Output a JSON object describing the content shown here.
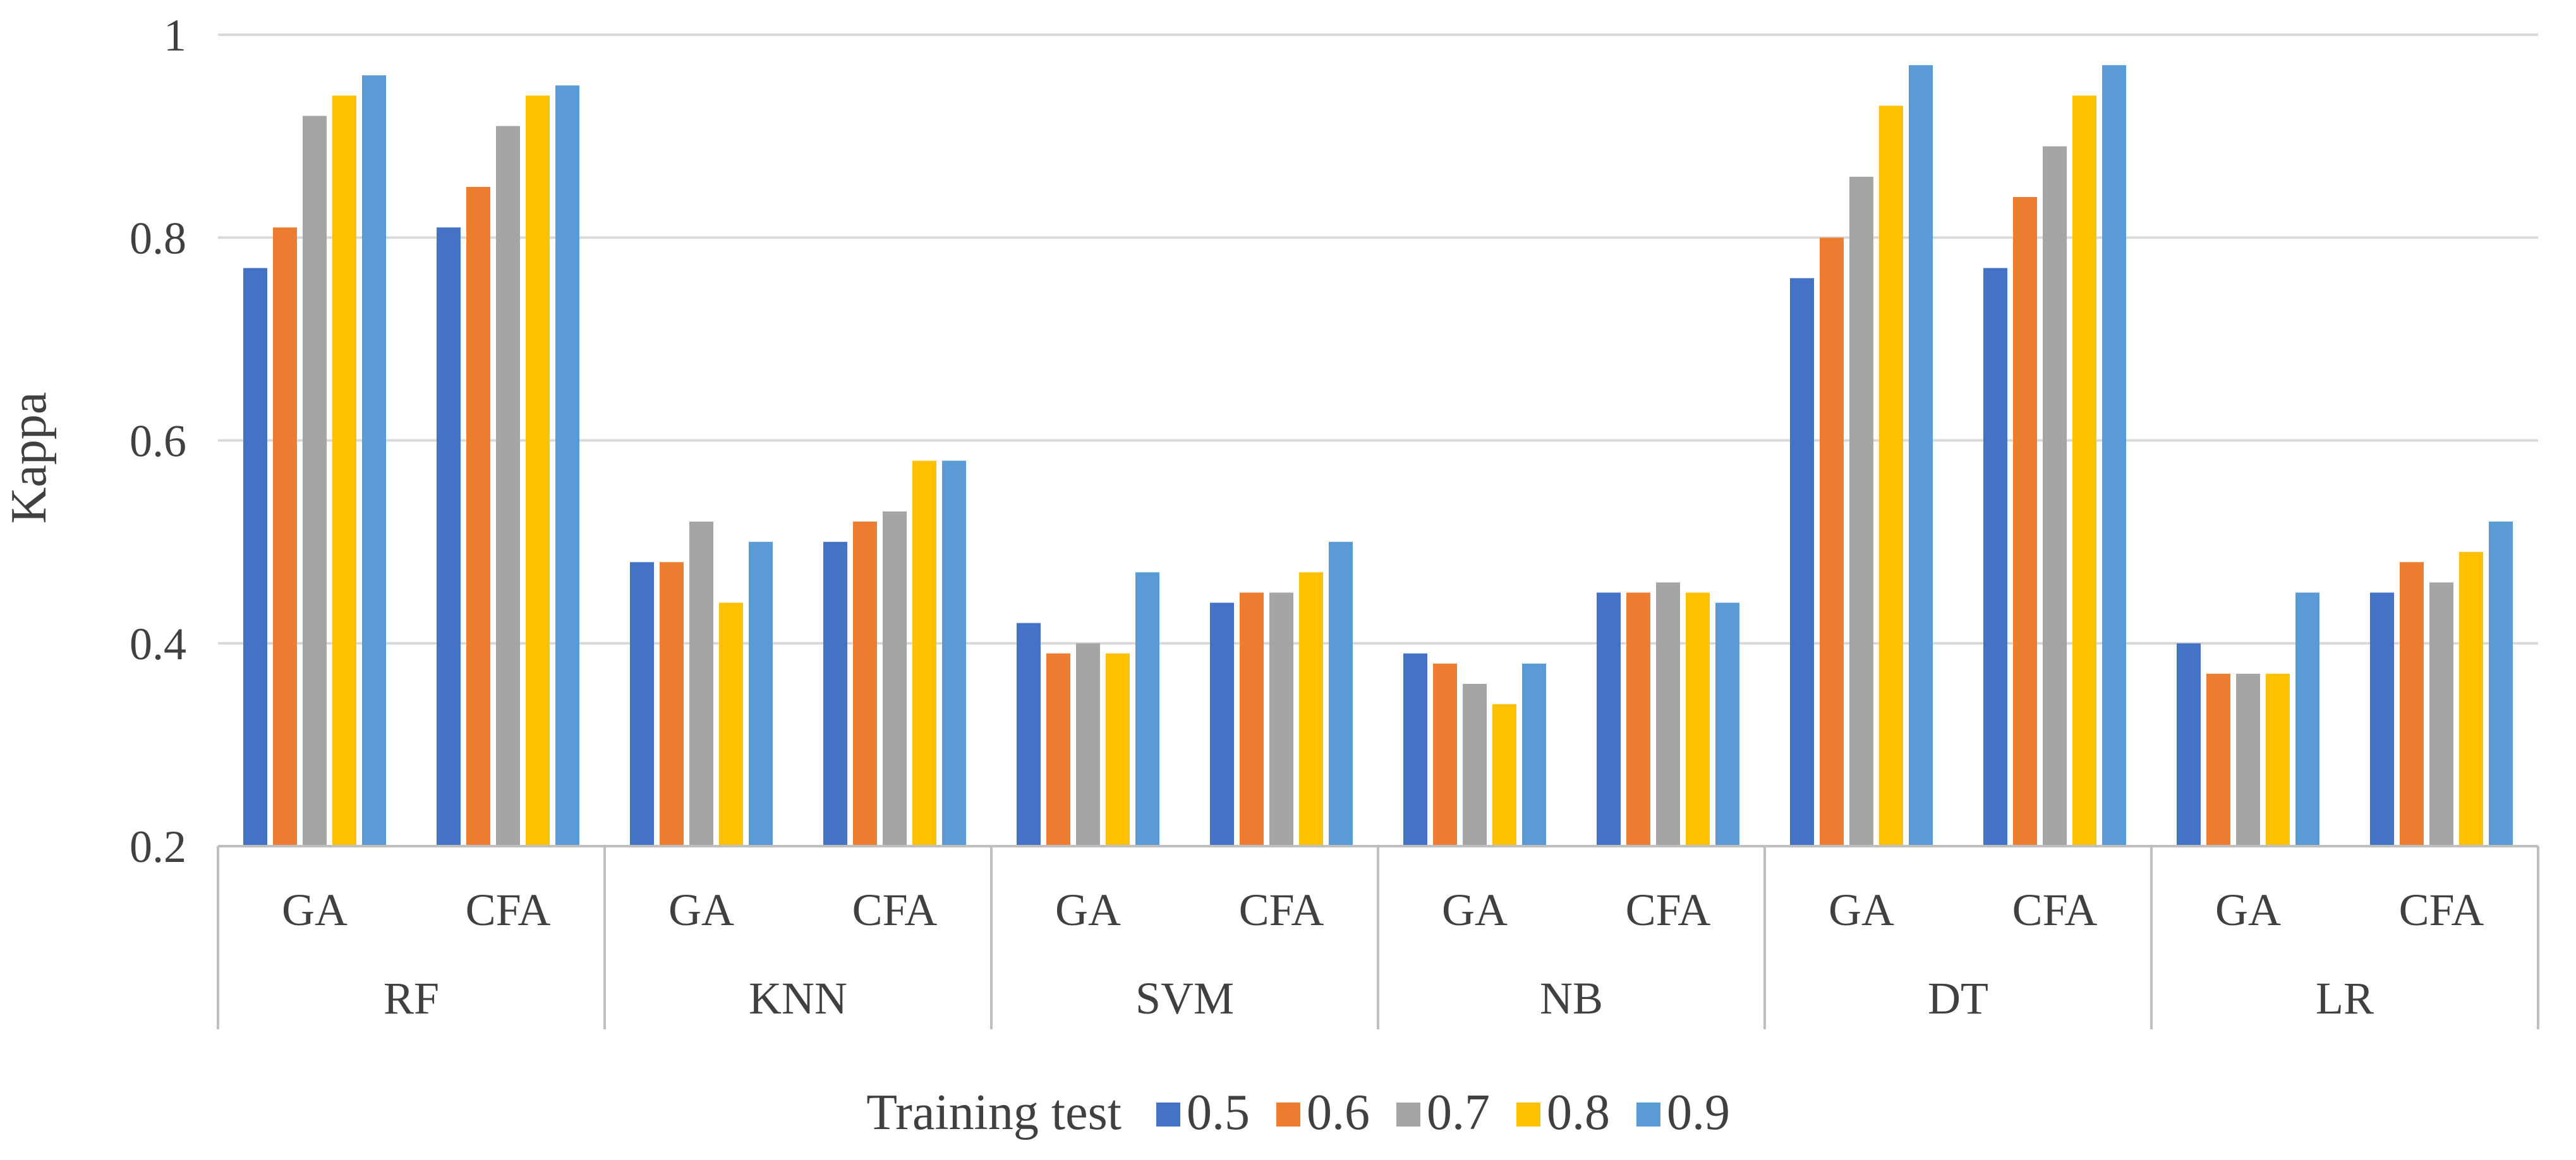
{
  "chart_data": {
    "type": "bar",
    "title": "",
    "ylabel": "Kappa",
    "xlabel": "",
    "ylim": [
      0.2,
      1.0
    ],
    "yticks": [
      "0.2",
      "0.4",
      "0.6",
      "0.8",
      "1"
    ],
    "grid": true,
    "groups": [
      "RF",
      "KNN",
      "SVM",
      "NB",
      "DT",
      "LR"
    ],
    "subcategories": [
      "GA",
      "CFA"
    ],
    "categories": [
      {
        "group": "RF",
        "sub": "GA"
      },
      {
        "group": "RF",
        "sub": "CFA"
      },
      {
        "group": "KNN",
        "sub": "GA"
      },
      {
        "group": "KNN",
        "sub": "CFA"
      },
      {
        "group": "SVM",
        "sub": "GA"
      },
      {
        "group": "SVM",
        "sub": "CFA"
      },
      {
        "group": "NB",
        "sub": "GA"
      },
      {
        "group": "NB",
        "sub": "CFA"
      },
      {
        "group": "DT",
        "sub": "GA"
      },
      {
        "group": "DT",
        "sub": "CFA"
      },
      {
        "group": "LR",
        "sub": "GA"
      },
      {
        "group": "LR",
        "sub": "CFA"
      }
    ],
    "legend_title": "Training test",
    "legend_position": "bottom",
    "series": [
      {
        "name": "0.5",
        "color": "#4472C4",
        "values": [
          0.77,
          0.81,
          0.48,
          0.5,
          0.42,
          0.44,
          0.39,
          0.45,
          0.76,
          0.77,
          0.4,
          0.45
        ]
      },
      {
        "name": "0.6",
        "color": "#ED7D31",
        "values": [
          0.81,
          0.85,
          0.48,
          0.52,
          0.39,
          0.45,
          0.38,
          0.45,
          0.8,
          0.84,
          0.37,
          0.48
        ]
      },
      {
        "name": "0.7",
        "color": "#A5A5A5",
        "values": [
          0.92,
          0.91,
          0.52,
          0.53,
          0.4,
          0.45,
          0.36,
          0.46,
          0.86,
          0.89,
          0.37,
          0.46
        ]
      },
      {
        "name": "0.8",
        "color": "#FFC000",
        "values": [
          0.94,
          0.94,
          0.44,
          0.58,
          0.39,
          0.47,
          0.34,
          0.45,
          0.93,
          0.94,
          0.37,
          0.49
        ]
      },
      {
        "name": "0.9",
        "color": "#5B9BD5",
        "values": [
          0.96,
          0.95,
          0.5,
          0.58,
          0.47,
          0.5,
          0.38,
          0.44,
          0.97,
          0.97,
          0.45,
          0.52
        ]
      }
    ]
  }
}
